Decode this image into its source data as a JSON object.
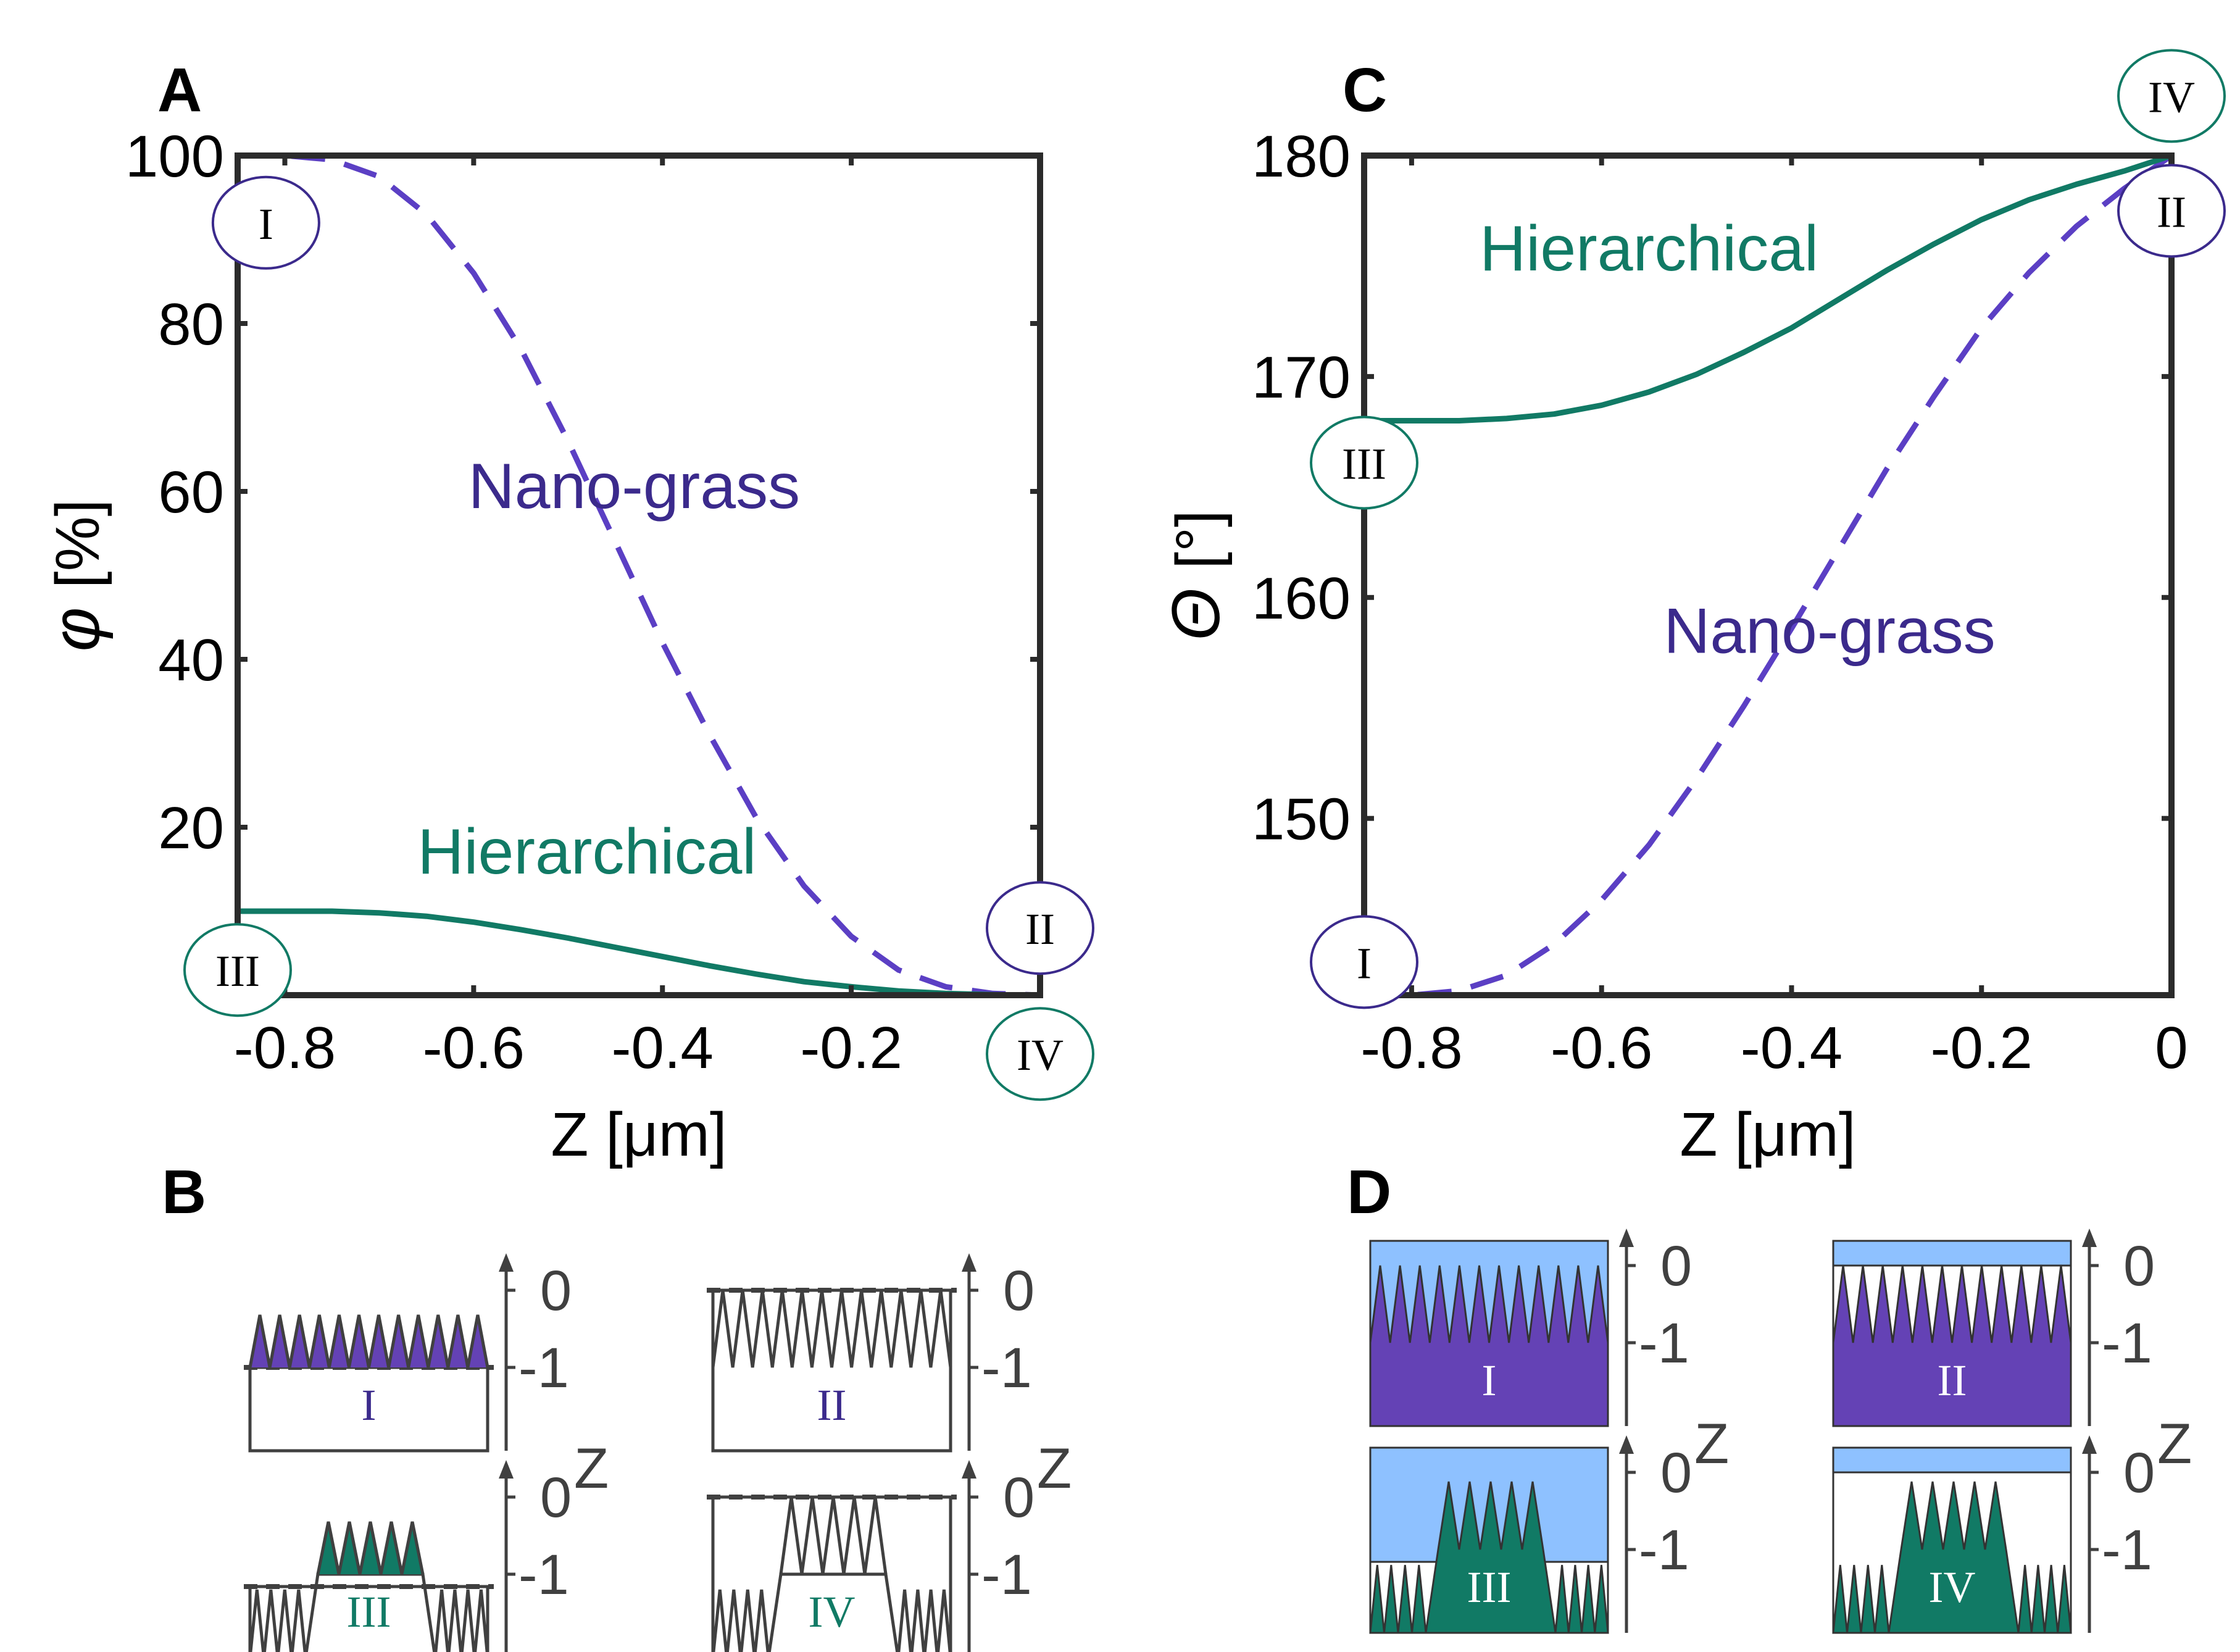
{
  "panels": {
    "A": "A",
    "B": "B",
    "C": "C",
    "D": "D"
  },
  "chart_data": [
    {
      "id": "A",
      "type": "line",
      "xlabel": "Z [μm]",
      "ylabel_symbol": "φ",
      "ylabel_unit": "[%]",
      "xlim": [
        -0.85,
        0
      ],
      "ylim": [
        0,
        100
      ],
      "xticks": [
        -0.8,
        -0.6,
        -0.4,
        -0.2
      ],
      "xtick_labels": [
        "-0.8",
        "-0.6",
        "-0.4",
        "-0.2"
      ],
      "yticks": [
        20,
        40,
        60,
        80,
        100
      ],
      "ytick_labels": [
        "20",
        "40",
        "60",
        "80",
        "100"
      ],
      "series": [
        {
          "name": "Nano-grass",
          "color": "#5b3fc4",
          "dash": true,
          "x": [
            -0.85,
            -0.8,
            -0.75,
            -0.7,
            -0.65,
            -0.6,
            -0.55,
            -0.5,
            -0.45,
            -0.4,
            -0.35,
            -0.3,
            -0.25,
            -0.2,
            -0.15,
            -0.1,
            -0.05,
            0
          ],
          "y": [
            100,
            100,
            99.5,
            97.5,
            93,
            86,
            77,
            66,
            54,
            42,
            31,
            21,
            13,
            7,
            3,
            1,
            0.2,
            0
          ]
        },
        {
          "name": "Hierarchical",
          "color": "#117a65",
          "dash": false,
          "x": [
            -0.85,
            -0.8,
            -0.75,
            -0.7,
            -0.65,
            -0.6,
            -0.55,
            -0.5,
            -0.45,
            -0.4,
            -0.35,
            -0.3,
            -0.25,
            -0.2,
            -0.15,
            -0.1,
            -0.05,
            0
          ],
          "y": [
            10,
            10,
            10,
            9.8,
            9.4,
            8.7,
            7.8,
            6.8,
            5.7,
            4.6,
            3.5,
            2.5,
            1.6,
            1.0,
            0.5,
            0.2,
            0.05,
            0
          ]
        }
      ],
      "markers": [
        {
          "label": "I",
          "x": -0.82,
          "y": 92,
          "color": "#3b2a8c"
        },
        {
          "label": "II",
          "x": 0,
          "y": 8,
          "color": "#3b2a8c"
        },
        {
          "label": "III",
          "x": -0.85,
          "y": 3,
          "color": "#117a65"
        },
        {
          "label": "IV",
          "x": 0,
          "y": -7,
          "color": "#117a65"
        }
      ],
      "annotations": [
        {
          "text": "Nano-grass",
          "x": -0.43,
          "y": 58,
          "color": "#3b2a8c"
        },
        {
          "text": "Hierarchical",
          "x": -0.48,
          "y": 14.5,
          "color": "#117a65"
        }
      ]
    },
    {
      "id": "C",
      "type": "line",
      "xlabel": "Z [μm]",
      "ylabel_symbol": "Θ",
      "ylabel_unit": "[°]",
      "xlim": [
        -0.85,
        0
      ],
      "ylim": [
        142,
        180
      ],
      "xticks": [
        -0.8,
        -0.6,
        -0.4,
        -0.2,
        0
      ],
      "xtick_labels": [
        "-0.8",
        "-0.6",
        "-0.4",
        "-0.2",
        "0"
      ],
      "yticks": [
        150,
        160,
        170,
        180
      ],
      "ytick_labels": [
        "150",
        "160",
        "170",
        "180"
      ],
      "series": [
        {
          "name": "Nano-grass",
          "color": "#5b3fc4",
          "dash": true,
          "x": [
            -0.85,
            -0.8,
            -0.75,
            -0.7,
            -0.65,
            -0.6,
            -0.55,
            -0.5,
            -0.45,
            -0.4,
            -0.35,
            -0.3,
            -0.25,
            -0.2,
            -0.15,
            -0.1,
            -0.05,
            0
          ],
          "y": [
            142,
            142,
            142.2,
            142.9,
            144.3,
            146.3,
            148.8,
            151.8,
            155.1,
            158.6,
            162.2,
            165.8,
            169.1,
            172.2,
            174.7,
            176.8,
            178.5,
            180
          ]
        },
        {
          "name": "Hierarchical",
          "color": "#117a65",
          "dash": false,
          "x": [
            -0.85,
            -0.8,
            -0.75,
            -0.7,
            -0.65,
            -0.6,
            -0.55,
            -0.5,
            -0.45,
            -0.4,
            -0.35,
            -0.3,
            -0.25,
            -0.2,
            -0.15,
            -0.1,
            -0.05,
            0
          ],
          "y": [
            168,
            168,
            168,
            168.1,
            168.3,
            168.7,
            169.3,
            170.1,
            171.1,
            172.2,
            173.5,
            174.8,
            176,
            177.1,
            178,
            178.7,
            179.3,
            180
          ]
        }
      ],
      "markers": [
        {
          "label": "I",
          "x": -0.85,
          "y": 143.5,
          "color": "#3b2a8c"
        },
        {
          "label": "II",
          "x": 0,
          "y": 177.5,
          "color": "#3b2a8c"
        },
        {
          "label": "III",
          "x": -0.85,
          "y": 166.1,
          "color": "#117a65"
        },
        {
          "label": "IV",
          "x": 0,
          "y": 182.7,
          "color": "#117a65"
        }
      ],
      "annotations": [
        {
          "text": "Hierarchical",
          "x": -0.55,
          "y": 174.8,
          "color": "#117a65"
        },
        {
          "text": "Nano-grass",
          "x": -0.36,
          "y": 157.5,
          "color": "#3b2a8c"
        }
      ]
    }
  ],
  "schematics": {
    "tick_top": "0",
    "tick_bottom": "-1",
    "axis_letter": "Z",
    "B": [
      {
        "label": "I",
        "type": "nano",
        "state": "infiltrated",
        "label_color": "#3b2a8c"
      },
      {
        "label": "II",
        "type": "nano",
        "state": "surface",
        "label_color": "#3b2a8c"
      },
      {
        "label": "III",
        "type": "hier",
        "state": "infiltrated",
        "label_color": "#117a65"
      },
      {
        "label": "IV",
        "type": "hier",
        "state": "surface",
        "label_color": "#117a65"
      }
    ],
    "D": [
      {
        "label": "I",
        "type": "nano",
        "state": "infiltrated",
        "label_color": "#ffffff"
      },
      {
        "label": "II",
        "type": "nano",
        "state": "surface",
        "label_color": "#ffffff"
      },
      {
        "label": "III",
        "type": "hier",
        "state": "infiltrated",
        "label_color": "#ffffff"
      },
      {
        "label": "IV",
        "type": "hier",
        "state": "surface",
        "label_color": "#ffffff"
      }
    ]
  },
  "colors": {
    "purple": "#5b3fc4",
    "purple_fill": "#6442b5",
    "teal": "#117a65",
    "water": "#8ec1ff",
    "axis": "#2b2b2b"
  }
}
